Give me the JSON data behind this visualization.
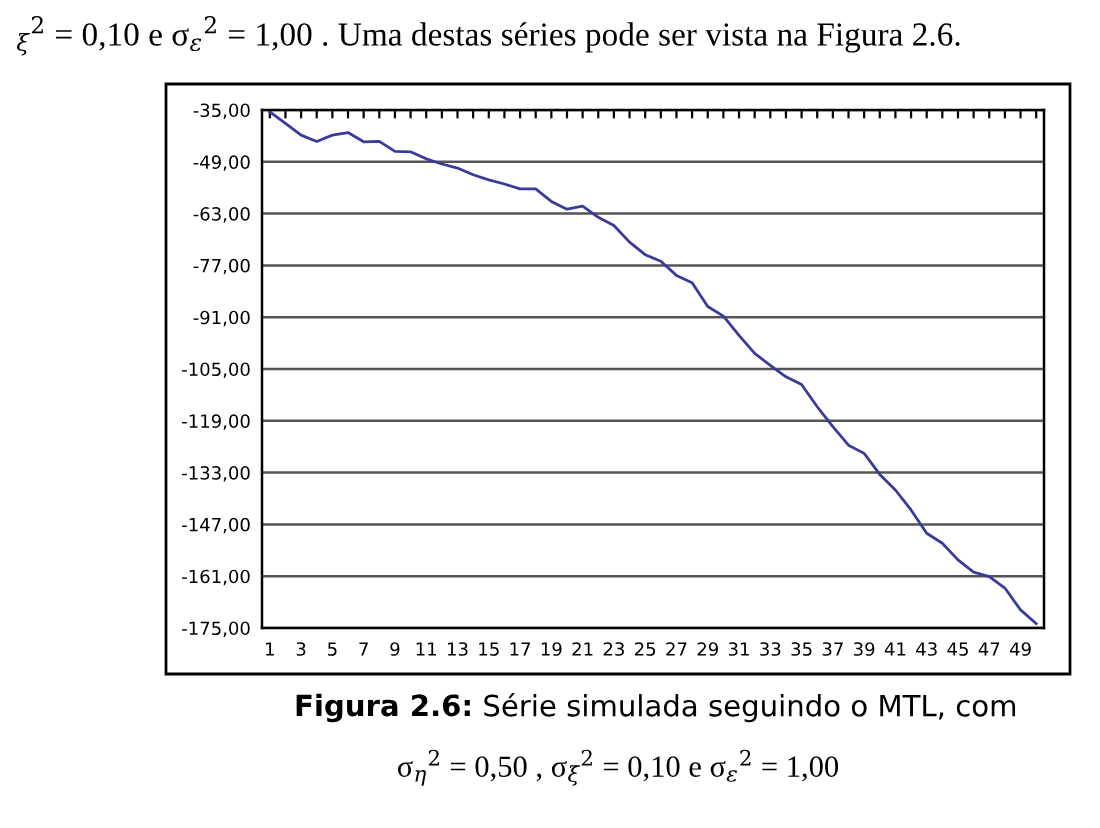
{
  "chart_data": {
    "type": "line",
    "categories": [
      "1",
      null,
      "3",
      null,
      "5",
      null,
      "7",
      null,
      "9",
      null,
      "11",
      null,
      "13",
      null,
      "15",
      null,
      "17",
      null,
      "19",
      null,
      "21",
      null,
      "23",
      null,
      "25",
      null,
      "27",
      null,
      "29",
      null,
      "31",
      null,
      "33",
      null,
      "35",
      null,
      "37",
      null,
      "39",
      null,
      "41",
      null,
      "43",
      null,
      "45",
      null,
      "47",
      null,
      "49",
      null
    ],
    "series": [
      {
        "color": "#3a3a9a",
        "values": [
          -35.5,
          -38.6,
          -41.8,
          -43.5,
          -41.8,
          -41.1,
          -43.6,
          -43.5,
          -46.2,
          -46.3,
          -48.2,
          -49.6,
          -50.7,
          -52.5,
          -53.9,
          -55,
          -56.3,
          -56.3,
          -59.7,
          -61.8,
          -61,
          -64,
          -66.2,
          -70.7,
          -74.1,
          -75.9,
          -79.7,
          -81.7,
          -88.1,
          -90.7,
          -95.9,
          -100.8,
          -104,
          -107.1,
          -109.2,
          -115.2,
          -120.6,
          -125.6,
          -127.8,
          -133.5,
          -137.7,
          -143.1,
          -149.4,
          -152.1,
          -156.6,
          -159.9,
          -161.1,
          -164.2,
          -170.1,
          -173.8
        ]
      }
    ],
    "ylim": [
      -175,
      -35
    ],
    "yticks": [
      {
        "value": -35,
        "label": "-35,00"
      },
      {
        "value": -49,
        "label": "-49,00"
      },
      {
        "value": -63,
        "label": "-63,00"
      },
      {
        "value": -77,
        "label": "-77,00"
      },
      {
        "value": -91,
        "label": "-91,00"
      },
      {
        "value": -105,
        "label": "-105,00"
      },
      {
        "value": -119,
        "label": "-119,00"
      },
      {
        "value": -133,
        "label": "-133,00"
      },
      {
        "value": -147,
        "label": "-147,00"
      },
      {
        "value": -161,
        "label": "-161,00"
      },
      {
        "value": -175,
        "label": "-175,00"
      }
    ],
    "grid": "y",
    "legend": false,
    "marker": "none",
    "line_style": "solid",
    "annotations": [
      "$_{ξ}$$^{2}$ = 0,10 e σ$_{ε}$$^{2}$ = 1,00 . Uma destas séries pode ser vista na Figura 2.6.",
      "Figura 2.6:",
      "Série simulada seguindo o MTL, com",
      "σ$_{η}$$^{2}$ = 0,50 , σ$_{ξ}$$^{2}$ = 0,10 e σ$_{ε}$$^{2}$ = 1,00"
    ]
  }
}
